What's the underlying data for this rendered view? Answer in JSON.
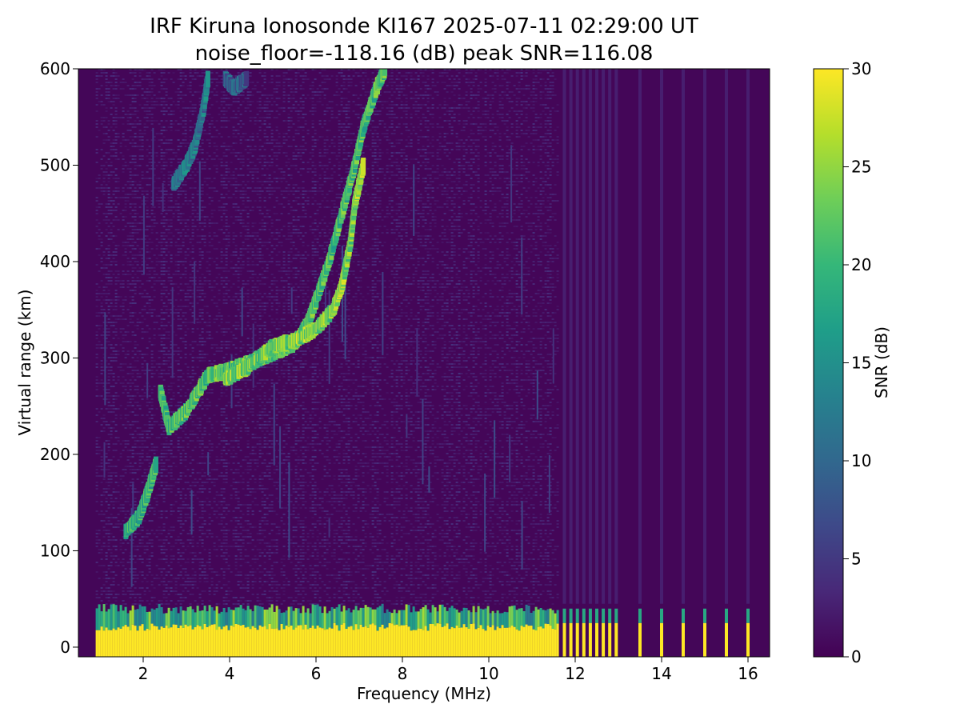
{
  "chart_data": {
    "type": "heatmap",
    "title_line1": "IRF Kiruna Ionosonde KI167 2025-07-11 02:29:00  UT",
    "title_line2": "noise_floor=-118.16 (dB) peak SNR=116.08",
    "xlabel": "Frequency (MHz)",
    "ylabel": "Virtual range (km)",
    "colorbar_label": "SNR (dB)",
    "xlim": [
      0.5,
      16.5
    ],
    "ylim": [
      -10,
      600
    ],
    "clim": [
      0,
      30
    ],
    "data_freq_range": [
      0.9,
      16.0
    ],
    "xticks": [
      2,
      4,
      6,
      8,
      10,
      12,
      14,
      16
    ],
    "yticks": [
      0,
      100,
      200,
      300,
      400,
      500,
      600
    ],
    "cticks": [
      0,
      5,
      10,
      15,
      20,
      25,
      30
    ],
    "colormap": "viridis",
    "colormap_stops": [
      "#440154",
      "#482878",
      "#3e4989",
      "#31688e",
      "#26828e",
      "#1f9e89",
      "#35b779",
      "#6ece58",
      "#b5de2b",
      "#fde725"
    ],
    "background_snr": 1,
    "ground_echo": {
      "continuous_sweep_freq_max": 11.6,
      "saturated_range_max": 25,
      "fringe_range_max": 45,
      "discrete_channels_mhz": [
        11.75,
        11.9,
        12.05,
        12.2,
        12.35,
        12.5,
        12.65,
        12.8,
        12.95,
        13.5,
        14.0,
        14.5,
        15.0,
        15.5,
        16.0
      ]
    },
    "traces": [
      {
        "name": "",
        "snr": 24,
        "points": [
          [
            1.6,
            120
          ],
          [
            1.9,
            135
          ],
          [
            2.1,
            160
          ],
          [
            2.3,
            190
          ]
        ]
      },
      {
        "name": "",
        "snr": 26,
        "points": [
          [
            2.4,
            265
          ],
          [
            2.6,
            228
          ],
          [
            3.0,
            245
          ],
          [
            3.5,
            282
          ],
          [
            4.0,
            287
          ],
          [
            4.5,
            296
          ],
          [
            5.0,
            305
          ],
          [
            5.5,
            315
          ],
          [
            5.8,
            335
          ],
          [
            6.0,
            360
          ],
          [
            6.3,
            400
          ],
          [
            6.6,
            450
          ],
          [
            6.9,
            500
          ],
          [
            7.1,
            540
          ],
          [
            7.4,
            580
          ],
          [
            7.6,
            600
          ]
        ]
      },
      {
        "name": "",
        "snr": 29,
        "points": [
          [
            3.9,
            278
          ],
          [
            4.4,
            290
          ],
          [
            5.0,
            312
          ],
          [
            5.5,
            318
          ],
          [
            6.0,
            330
          ],
          [
            6.4,
            350
          ],
          [
            6.6,
            375
          ],
          [
            6.8,
            420
          ],
          [
            6.9,
            460
          ],
          [
            7.1,
            500
          ]
        ]
      },
      {
        "name": "",
        "snr": 17,
        "points": [
          [
            2.7,
            480
          ],
          [
            3.0,
            500
          ],
          [
            3.2,
            520
          ],
          [
            3.4,
            560
          ],
          [
            3.5,
            590
          ]
        ]
      },
      {
        "name": "",
        "snr": 14,
        "points": [
          [
            3.9,
            590
          ],
          [
            4.1,
            580
          ],
          [
            4.4,
            590
          ]
        ]
      }
    ]
  }
}
